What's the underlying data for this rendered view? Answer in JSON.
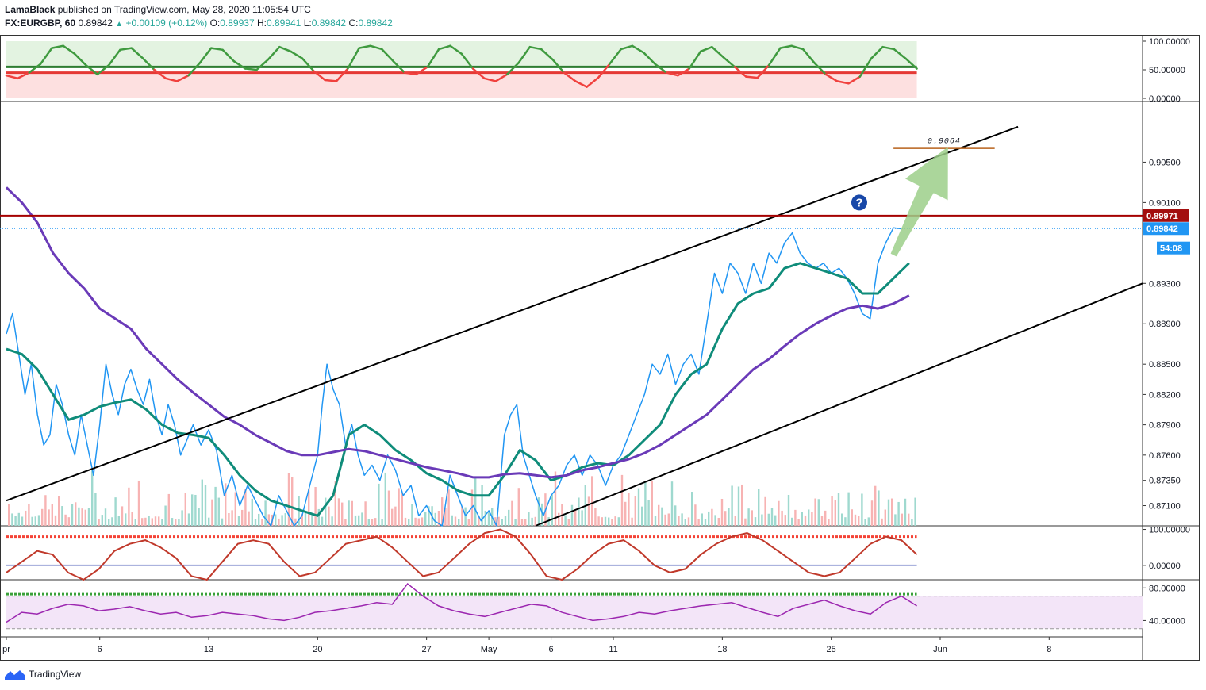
{
  "header": {
    "publisher": "LamaBlack",
    "published_text": "published on TradingView.com, May 28, 2020 11:05:54 UTC",
    "symbol": "FX:EURGBP, 60",
    "last": "0.89842",
    "change": "+0.00109 (+0.12%)",
    "o_label": "O:",
    "o_value": "0.89937",
    "h_label": "H:",
    "h_value": "0.89941",
    "l_label": "L:",
    "l_value": "0.89842",
    "c_label": "C:",
    "c_value": "0.89842"
  },
  "footer": {
    "brand": "TradingView"
  },
  "colors": {
    "price_line": "#2196f3",
    "ma_fast": "#0f8c7a",
    "ma_slow": "#6a3ab8",
    "channel": "#000000",
    "resistance": "#a50000",
    "target": "#b8621b",
    "arrow": "#9ccf8a",
    "question_badge": "#1848a8",
    "rsi_purple": "#9c27b0",
    "osc_red": "#e53935",
    "osc_green": "#2e7d32",
    "stoch_green": "#3aa03a",
    "stoch_red": "#f44336"
  },
  "chart_data": [
    {
      "type": "line",
      "name": "top-oscillator",
      "ylim": [
        0,
        100
      ],
      "tick_labels": [
        "100.00000",
        "50.00000",
        "0.00000"
      ],
      "tick_values": [
        100,
        50,
        0
      ],
      "levels": [
        55,
        45
      ],
      "series": [
        {
          "values": [
            40,
            35,
            45,
            60,
            88,
            92,
            78,
            58,
            42,
            58,
            85,
            88,
            70,
            50,
            35,
            30,
            40,
            62,
            88,
            85,
            65,
            52,
            50,
            68,
            90,
            82,
            70,
            48,
            32,
            30,
            52,
            88,
            92,
            86,
            65,
            45,
            42,
            55,
            86,
            92,
            78,
            52,
            35,
            30,
            42,
            62,
            90,
            86,
            68,
            45,
            30,
            20,
            36,
            60,
            86,
            92,
            80,
            60,
            45,
            40,
            52,
            82,
            90,
            72,
            55,
            38,
            36,
            58,
            88,
            92,
            86,
            62,
            42,
            30,
            26,
            38,
            70,
            90,
            86,
            70,
            52
          ]
        }
      ]
    },
    {
      "type": "line",
      "name": "main-price",
      "title": "",
      "ylim": [
        0.869,
        0.911
      ],
      "tick_labels": [
        "0.90500",
        "0.90100",
        "0.89300",
        "0.88900",
        "0.88500",
        "0.88200",
        "0.87900",
        "0.87600",
        "0.87350",
        "0.87100"
      ],
      "tick_values": [
        0.905,
        0.901,
        0.893,
        0.889,
        0.885,
        0.882,
        0.879,
        0.876,
        0.8735,
        0.871
      ],
      "x_labels": [
        "pr",
        "6",
        "13",
        "20",
        "27",
        "May",
        "6",
        "11",
        "18",
        "25",
        "Jun",
        "8"
      ],
      "x_label_values": [
        0,
        6,
        13,
        20,
        27,
        31,
        35,
        39,
        46,
        53,
        60,
        67
      ],
      "x_range": [
        0,
        73
      ],
      "price_tags": [
        {
          "label": "0.89971",
          "value": 0.89971
        },
        {
          "label": "0.89842",
          "value": 0.89842
        },
        {
          "label": "54:08",
          "value": 0.8965
        }
      ],
      "series": [
        {
          "name": "",
          "role": "price",
          "x": [
            0,
            0.4,
            0.8,
            1.2,
            1.6,
            2,
            2.4,
            2.8,
            3.2,
            3.6,
            4,
            4.4,
            4.8,
            5.2,
            5.6,
            6,
            6.4,
            6.8,
            7.2,
            7.6,
            8,
            8.4,
            8.8,
            9.2,
            9.6,
            10,
            10.4,
            10.8,
            11.2,
            11.6,
            12,
            12.5,
            13,
            13.5,
            14,
            14.5,
            15,
            15.5,
            16,
            16.5,
            17,
            17.5,
            18,
            18.5,
            19,
            19.5,
            20,
            20.3,
            20.6,
            21,
            21.4,
            21.8,
            22.2,
            22.6,
            23,
            23.5,
            24,
            24.5,
            25,
            25.5,
            26,
            26.5,
            27,
            27.5,
            28,
            28.5,
            29,
            29.5,
            30,
            30.5,
            31,
            31.5,
            32,
            32.4,
            32.8,
            33.2,
            33.6,
            34,
            34.5,
            35,
            35.5,
            36,
            36.5,
            37,
            37.5,
            38,
            38.5,
            39,
            39.5,
            40,
            40.5,
            41,
            41.5,
            42,
            42.5,
            43,
            43.5,
            44,
            44.5,
            45,
            45.5,
            46,
            46.5,
            47,
            47.5,
            48,
            48.5,
            49,
            49.5,
            50,
            50.5,
            51,
            51.5,
            52,
            52.5,
            53,
            53.5,
            54,
            54.5,
            55,
            55.5,
            56,
            56.5,
            57,
            57.5
          ],
          "values": [
            0.888,
            0.89,
            0.886,
            0.882,
            0.885,
            0.88,
            0.877,
            0.878,
            0.883,
            0.881,
            0.878,
            0.876,
            0.88,
            0.877,
            0.874,
            0.879,
            0.885,
            0.882,
            0.88,
            0.883,
            0.8845,
            0.8825,
            0.881,
            0.8835,
            0.88,
            0.878,
            0.881,
            0.879,
            0.876,
            0.8775,
            0.879,
            0.877,
            0.8785,
            0.8765,
            0.872,
            0.874,
            0.871,
            0.873,
            0.8715,
            0.87,
            0.869,
            0.872,
            0.8705,
            0.869,
            0.87,
            0.873,
            0.876,
            0.881,
            0.885,
            0.8825,
            0.881,
            0.877,
            0.879,
            0.876,
            0.874,
            0.875,
            0.8735,
            0.876,
            0.8745,
            0.872,
            0.873,
            0.87,
            0.871,
            0.8695,
            0.869,
            0.874,
            0.872,
            0.87,
            0.871,
            0.8695,
            0.8705,
            0.869,
            0.878,
            0.88,
            0.881,
            0.876,
            0.874,
            0.872,
            0.87,
            0.872,
            0.873,
            0.875,
            0.876,
            0.874,
            0.876,
            0.875,
            0.873,
            0.875,
            0.876,
            0.878,
            0.88,
            0.882,
            0.885,
            0.884,
            0.886,
            0.883,
            0.885,
            0.886,
            0.884,
            0.889,
            0.894,
            0.892,
            0.895,
            0.894,
            0.892,
            0.895,
            0.893,
            0.896,
            0.895,
            0.897,
            0.898,
            0.896,
            0.895,
            0.8945,
            0.895,
            0.894,
            0.8945,
            0.8935,
            0.892,
            0.89,
            0.8895,
            0.895,
            0.897,
            0.8985,
            0.8984
          ]
        },
        {
          "name": "",
          "role": "ma_fast",
          "x": [
            0,
            1,
            2,
            3,
            4,
            5,
            6,
            7,
            8,
            9,
            10,
            11,
            12,
            13,
            14,
            15,
            16,
            17,
            18,
            19,
            20,
            21,
            22,
            23,
            24,
            25,
            26,
            27,
            28,
            29,
            30,
            31,
            32,
            33,
            34,
            35,
            36,
            37,
            38,
            39,
            40,
            41,
            42,
            43,
            44,
            45,
            46,
            47,
            48,
            49,
            50,
            51,
            52,
            53,
            54,
            55,
            56,
            57,
            58
          ],
          "values": [
            0.8865,
            0.886,
            0.8845,
            0.882,
            0.8795,
            0.88,
            0.8808,
            0.8812,
            0.8815,
            0.8805,
            0.879,
            0.8782,
            0.878,
            0.8777,
            0.876,
            0.874,
            0.8725,
            0.8715,
            0.871,
            0.8705,
            0.87,
            0.872,
            0.878,
            0.879,
            0.878,
            0.8765,
            0.8755,
            0.8742,
            0.8735,
            0.8725,
            0.872,
            0.872,
            0.874,
            0.8765,
            0.8755,
            0.8735,
            0.874,
            0.8748,
            0.8752,
            0.875,
            0.876,
            0.8775,
            0.879,
            0.882,
            0.884,
            0.885,
            0.8885,
            0.891,
            0.892,
            0.8925,
            0.8945,
            0.895,
            0.8945,
            0.894,
            0.8935,
            0.892,
            0.892,
            0.8935,
            0.895
          ]
        },
        {
          "name": "",
          "role": "ma_slow",
          "x": [
            0,
            1,
            2,
            3,
            4,
            5,
            6,
            7,
            8,
            9,
            10,
            11,
            12,
            13,
            14,
            15,
            16,
            17,
            18,
            19,
            20,
            21,
            22,
            23,
            24,
            25,
            26,
            27,
            28,
            29,
            30,
            31,
            32,
            33,
            34,
            35,
            36,
            37,
            38,
            39,
            40,
            41,
            42,
            43,
            44,
            45,
            46,
            47,
            48,
            49,
            50,
            51,
            52,
            53,
            54,
            55,
            56,
            57,
            58
          ],
          "values": [
            0.9025,
            0.901,
            0.899,
            0.896,
            0.894,
            0.8925,
            0.8905,
            0.8895,
            0.8885,
            0.8865,
            0.885,
            0.8835,
            0.8822,
            0.881,
            0.8798,
            0.879,
            0.878,
            0.8772,
            0.8764,
            0.876,
            0.876,
            0.8763,
            0.8766,
            0.8764,
            0.876,
            0.8756,
            0.8752,
            0.8748,
            0.8745,
            0.8742,
            0.8738,
            0.8738,
            0.8741,
            0.8742,
            0.874,
            0.8738,
            0.874,
            0.8745,
            0.8748,
            0.8752,
            0.8756,
            0.8762,
            0.877,
            0.878,
            0.879,
            0.88,
            0.8815,
            0.883,
            0.8845,
            0.8855,
            0.8868,
            0.888,
            0.889,
            0.8898,
            0.8905,
            0.8908,
            0.8905,
            0.891,
            0.8918
          ]
        }
      ],
      "annotations": [
        {
          "type": "channel-upper",
          "x1": 0,
          "y1": 0.8715,
          "x2": 65,
          "y2": 0.9085
        },
        {
          "type": "channel-lower",
          "x1": 34,
          "y1": 0.869,
          "x2": 73,
          "y2": 0.893
        },
        {
          "type": "horizontal",
          "value": 0.89971
        },
        {
          "type": "target",
          "label": "0.9064",
          "value": 0.9064,
          "x1": 57,
          "x2": 63.5
        },
        {
          "type": "arrow",
          "x1": 57,
          "y1": 0.8958,
          "x2": 60.5,
          "y2": 0.9065
        },
        {
          "type": "question",
          "x": 54.8,
          "y": 0.901
        }
      ]
    },
    {
      "type": "line",
      "name": "stochastic",
      "ylim": [
        -40,
        110
      ],
      "tick_labels": [
        "100.00000",
        "0.00000"
      ],
      "tick_values": [
        100,
        0
      ],
      "levels": [
        80,
        -80
      ],
      "series": [
        {
          "values": [
            -20,
            10,
            40,
            30,
            -20,
            -40,
            -10,
            40,
            60,
            70,
            50,
            20,
            -30,
            -40,
            10,
            60,
            70,
            60,
            10,
            -30,
            -20,
            20,
            60,
            70,
            80,
            50,
            10,
            -30,
            -20,
            20,
            60,
            90,
            100,
            80,
            30,
            -30,
            -40,
            -10,
            30,
            60,
            70,
            40,
            0,
            -20,
            -10,
            30,
            60,
            80,
            90,
            70,
            40,
            10,
            -20,
            -30,
            -20,
            20,
            60,
            80,
            70,
            30
          ]
        }
      ]
    },
    {
      "type": "line",
      "name": "rsi",
      "ylim": [
        20,
        90
      ],
      "tick_labels": [
        "80.00000",
        "40.00000"
      ],
      "tick_values": [
        80,
        40
      ],
      "levels": [
        70,
        30
      ],
      "series": [
        {
          "values": [
            38,
            50,
            48,
            55,
            60,
            58,
            52,
            54,
            57,
            52,
            48,
            50,
            44,
            46,
            50,
            48,
            46,
            42,
            40,
            44,
            50,
            52,
            55,
            58,
            62,
            60,
            85,
            70,
            58,
            52,
            48,
            45,
            50,
            55,
            60,
            58,
            50,
            45,
            40,
            42,
            45,
            50,
            48,
            52,
            55,
            58,
            60,
            62,
            56,
            50,
            45,
            55,
            60,
            65,
            58,
            52,
            48,
            62,
            70,
            58
          ]
        }
      ]
    }
  ]
}
